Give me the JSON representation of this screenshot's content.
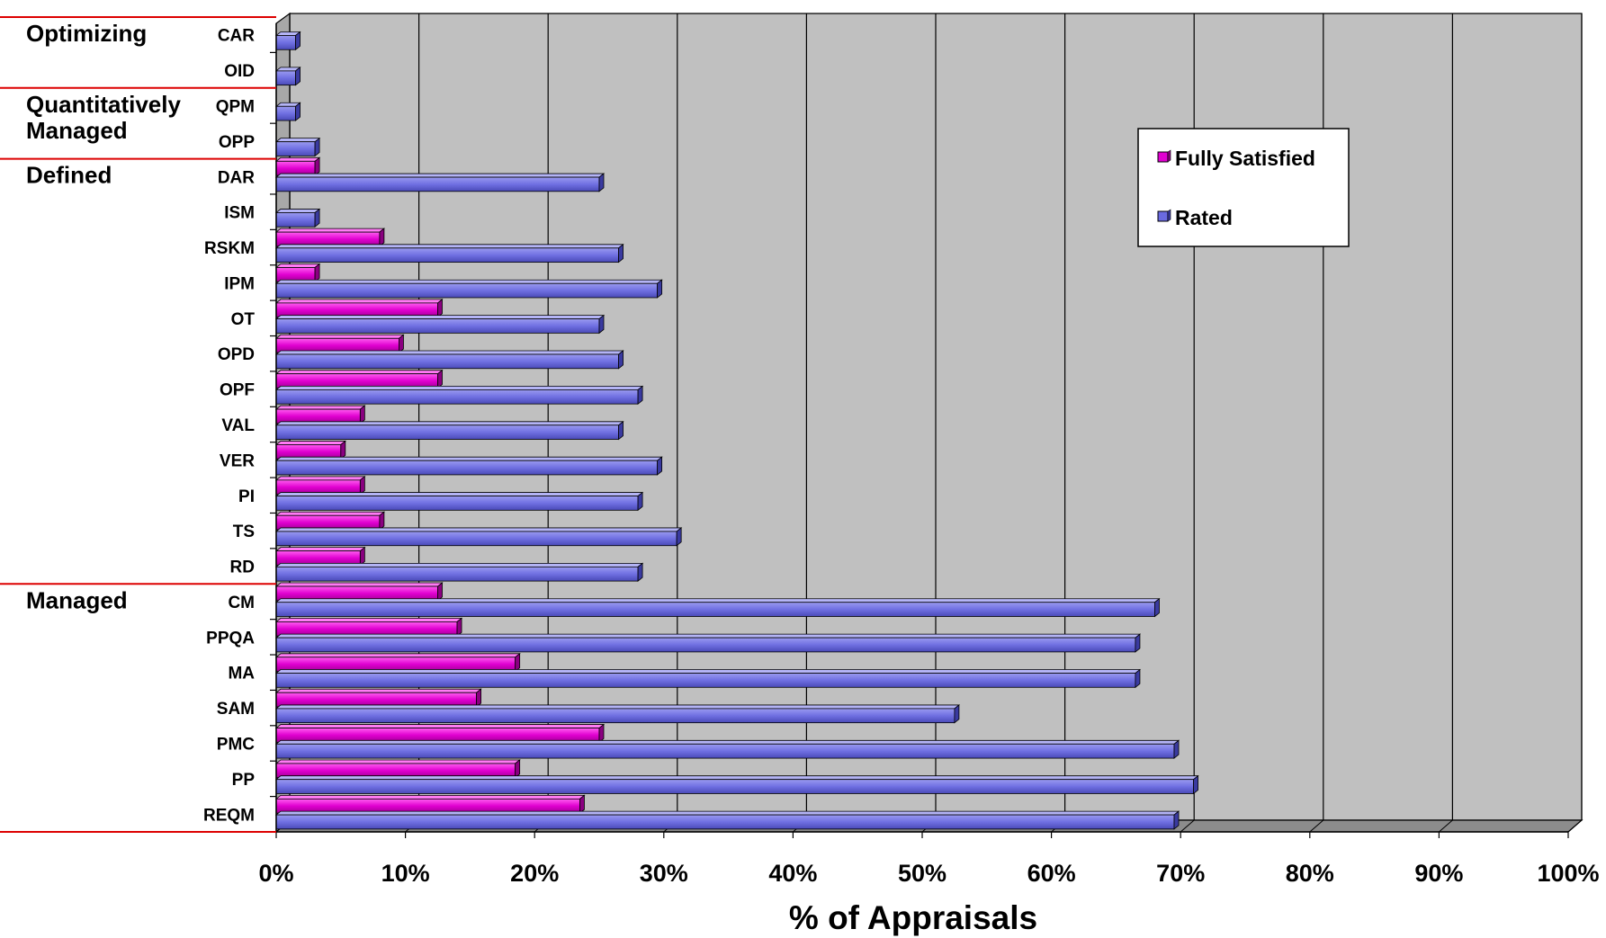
{
  "chart_data": {
    "type": "bar",
    "orientation": "horizontal",
    "style": "3d-clustered",
    "categories": [
      "CAR",
      "OID",
      "QPM",
      "OPP",
      "DAR",
      "ISM",
      "RSKM",
      "IPM",
      "OT",
      "OPD",
      "OPF",
      "VAL",
      "VER",
      "PI",
      "TS",
      "RD",
      "CM",
      "PPQA",
      "MA",
      "SAM",
      "PMC",
      "PP",
      "REQM"
    ],
    "series": [
      {
        "name": "Fully Satisfied",
        "color": "#e000d0",
        "values": [
          0,
          0,
          0,
          0,
          3,
          0,
          8,
          3,
          12.5,
          9.5,
          12.5,
          6.5,
          5,
          6.5,
          8,
          6.5,
          12.5,
          14,
          18.5,
          15.5,
          25,
          18.5,
          23.5
        ]
      },
      {
        "name": "Rated",
        "color": "#6a6ae0",
        "values": [
          1.5,
          1.5,
          1.5,
          3,
          25,
          3,
          26.5,
          29.5,
          25,
          26.5,
          28,
          26.5,
          29.5,
          28,
          31,
          28,
          68,
          66.5,
          66.5,
          52.5,
          69.5,
          71,
          69.5
        ]
      }
    ],
    "groups": [
      {
        "label": "Optimizing",
        "lines": [
          "Optimizing"
        ],
        "categories": [
          "CAR",
          "OID"
        ]
      },
      {
        "label": "Quantitatively Managed",
        "lines": [
          "Quantitatively",
          "Managed"
        ],
        "categories": [
          "QPM",
          "OPP"
        ]
      },
      {
        "label": "Defined",
        "lines": [
          "Defined"
        ],
        "categories": [
          "DAR",
          "ISM",
          "RSKM",
          "IPM",
          "OT",
          "OPD",
          "OPF",
          "VAL",
          "VER",
          "PI",
          "TS",
          "RD"
        ]
      },
      {
        "label": "Managed",
        "lines": [
          "Managed"
        ],
        "categories": [
          "CM",
          "PPQA",
          "MA",
          "SAM",
          "PMC",
          "PP",
          "REQM"
        ]
      }
    ],
    "xlabel": "% of Appraisals",
    "xlim": [
      0,
      100
    ],
    "xticks": [
      0,
      10,
      20,
      30,
      40,
      50,
      60,
      70,
      80,
      90,
      100
    ],
    "xtick_labels": [
      "0%",
      "10%",
      "20%",
      "30%",
      "40%",
      "50%",
      "60%",
      "70%",
      "80%",
      "90%",
      "100%"
    ],
    "grid": true,
    "legend": {
      "position": "right",
      "entries": [
        "Fully Satisfied",
        "Rated"
      ]
    },
    "colors": {
      "wall": "#c0c0c0",
      "group_divider": "#dd0000"
    }
  }
}
